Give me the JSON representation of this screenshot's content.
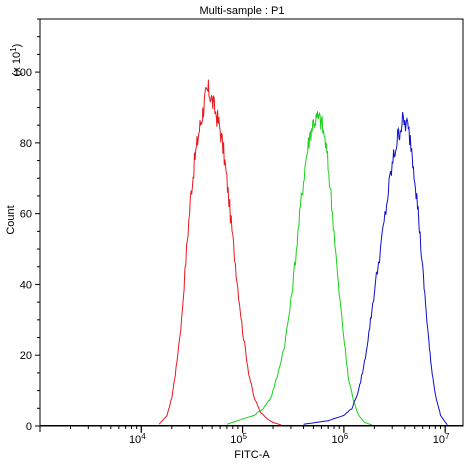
{
  "chart_data": {
    "type": "line",
    "title": "Multi-sample : P1",
    "xlabel": "FITC-A",
    "ylabel": "Count",
    "y_multiplier_label": "(x 10",
    "y_multiplier_exp": "1",
    "y_multiplier_close": ")",
    "x_scale": "log",
    "xlim": [
      1000,
      15000000
    ],
    "ylim": [
      0,
      115
    ],
    "x_ticks": [
      {
        "value": 10000,
        "base": "10",
        "exp": "4"
      },
      {
        "value": 100000,
        "base": "10",
        "exp": "5"
      },
      {
        "value": 1000000,
        "base": "10",
        "exp": "6"
      },
      {
        "value": 10000000,
        "base": "10",
        "exp": "7"
      }
    ],
    "y_ticks": [
      0,
      20,
      40,
      60,
      80,
      100
    ],
    "grid": false,
    "legend": "none",
    "series": [
      {
        "color": "#e8191f",
        "x": [
          15000,
          18000,
          20000,
          22000,
          25000,
          28000,
          31000,
          34000,
          37000,
          40000,
          43000,
          46000,
          50000,
          55000,
          60000,
          66000,
          72000,
          80000,
          90000,
          100000,
          115000,
          130000,
          150000,
          175000,
          200000,
          240000
        ],
        "y": [
          0.5,
          3,
          8,
          16,
          30,
          50,
          66,
          76,
          83,
          88,
          93,
          95,
          92,
          88,
          84,
          76,
          66,
          53,
          39,
          27,
          15,
          8,
          4,
          2,
          1,
          0.3
        ]
      },
      {
        "color": "#18d11a",
        "x": [
          70000,
          100000,
          130000,
          160000,
          190000,
          220000,
          260000,
          300000,
          340000,
          380000,
          420000,
          460000,
          500000,
          550000,
          600000,
          660000,
          720000,
          800000,
          880000,
          1000000,
          1100000,
          1250000,
          1400000,
          1600000,
          1900000
        ],
        "y": [
          0.5,
          2,
          3,
          5,
          8,
          14,
          23,
          35,
          50,
          64,
          75,
          82,
          86,
          87,
          86,
          80,
          70,
          55,
          40,
          25,
          14,
          7,
          3,
          1,
          0.3
        ]
      },
      {
        "color": "#0c0fcc",
        "x": [
          400000,
          700000,
          1000000,
          1200000,
          1400000,
          1600000,
          1800000,
          2000000,
          2300000,
          2600000,
          2900000,
          3200000,
          3500000,
          3800000,
          4200000,
          4600000,
          5000000,
          5500000,
          6000000,
          6600000,
          7200000,
          8000000,
          9000000,
          10500000
        ],
        "y": [
          0.5,
          1.5,
          3,
          5,
          10,
          18,
          28,
          38,
          50,
          61,
          71,
          78,
          83,
          86,
          85,
          80,
          71,
          58,
          44,
          30,
          18,
          9,
          3,
          0.3
        ]
      }
    ]
  }
}
